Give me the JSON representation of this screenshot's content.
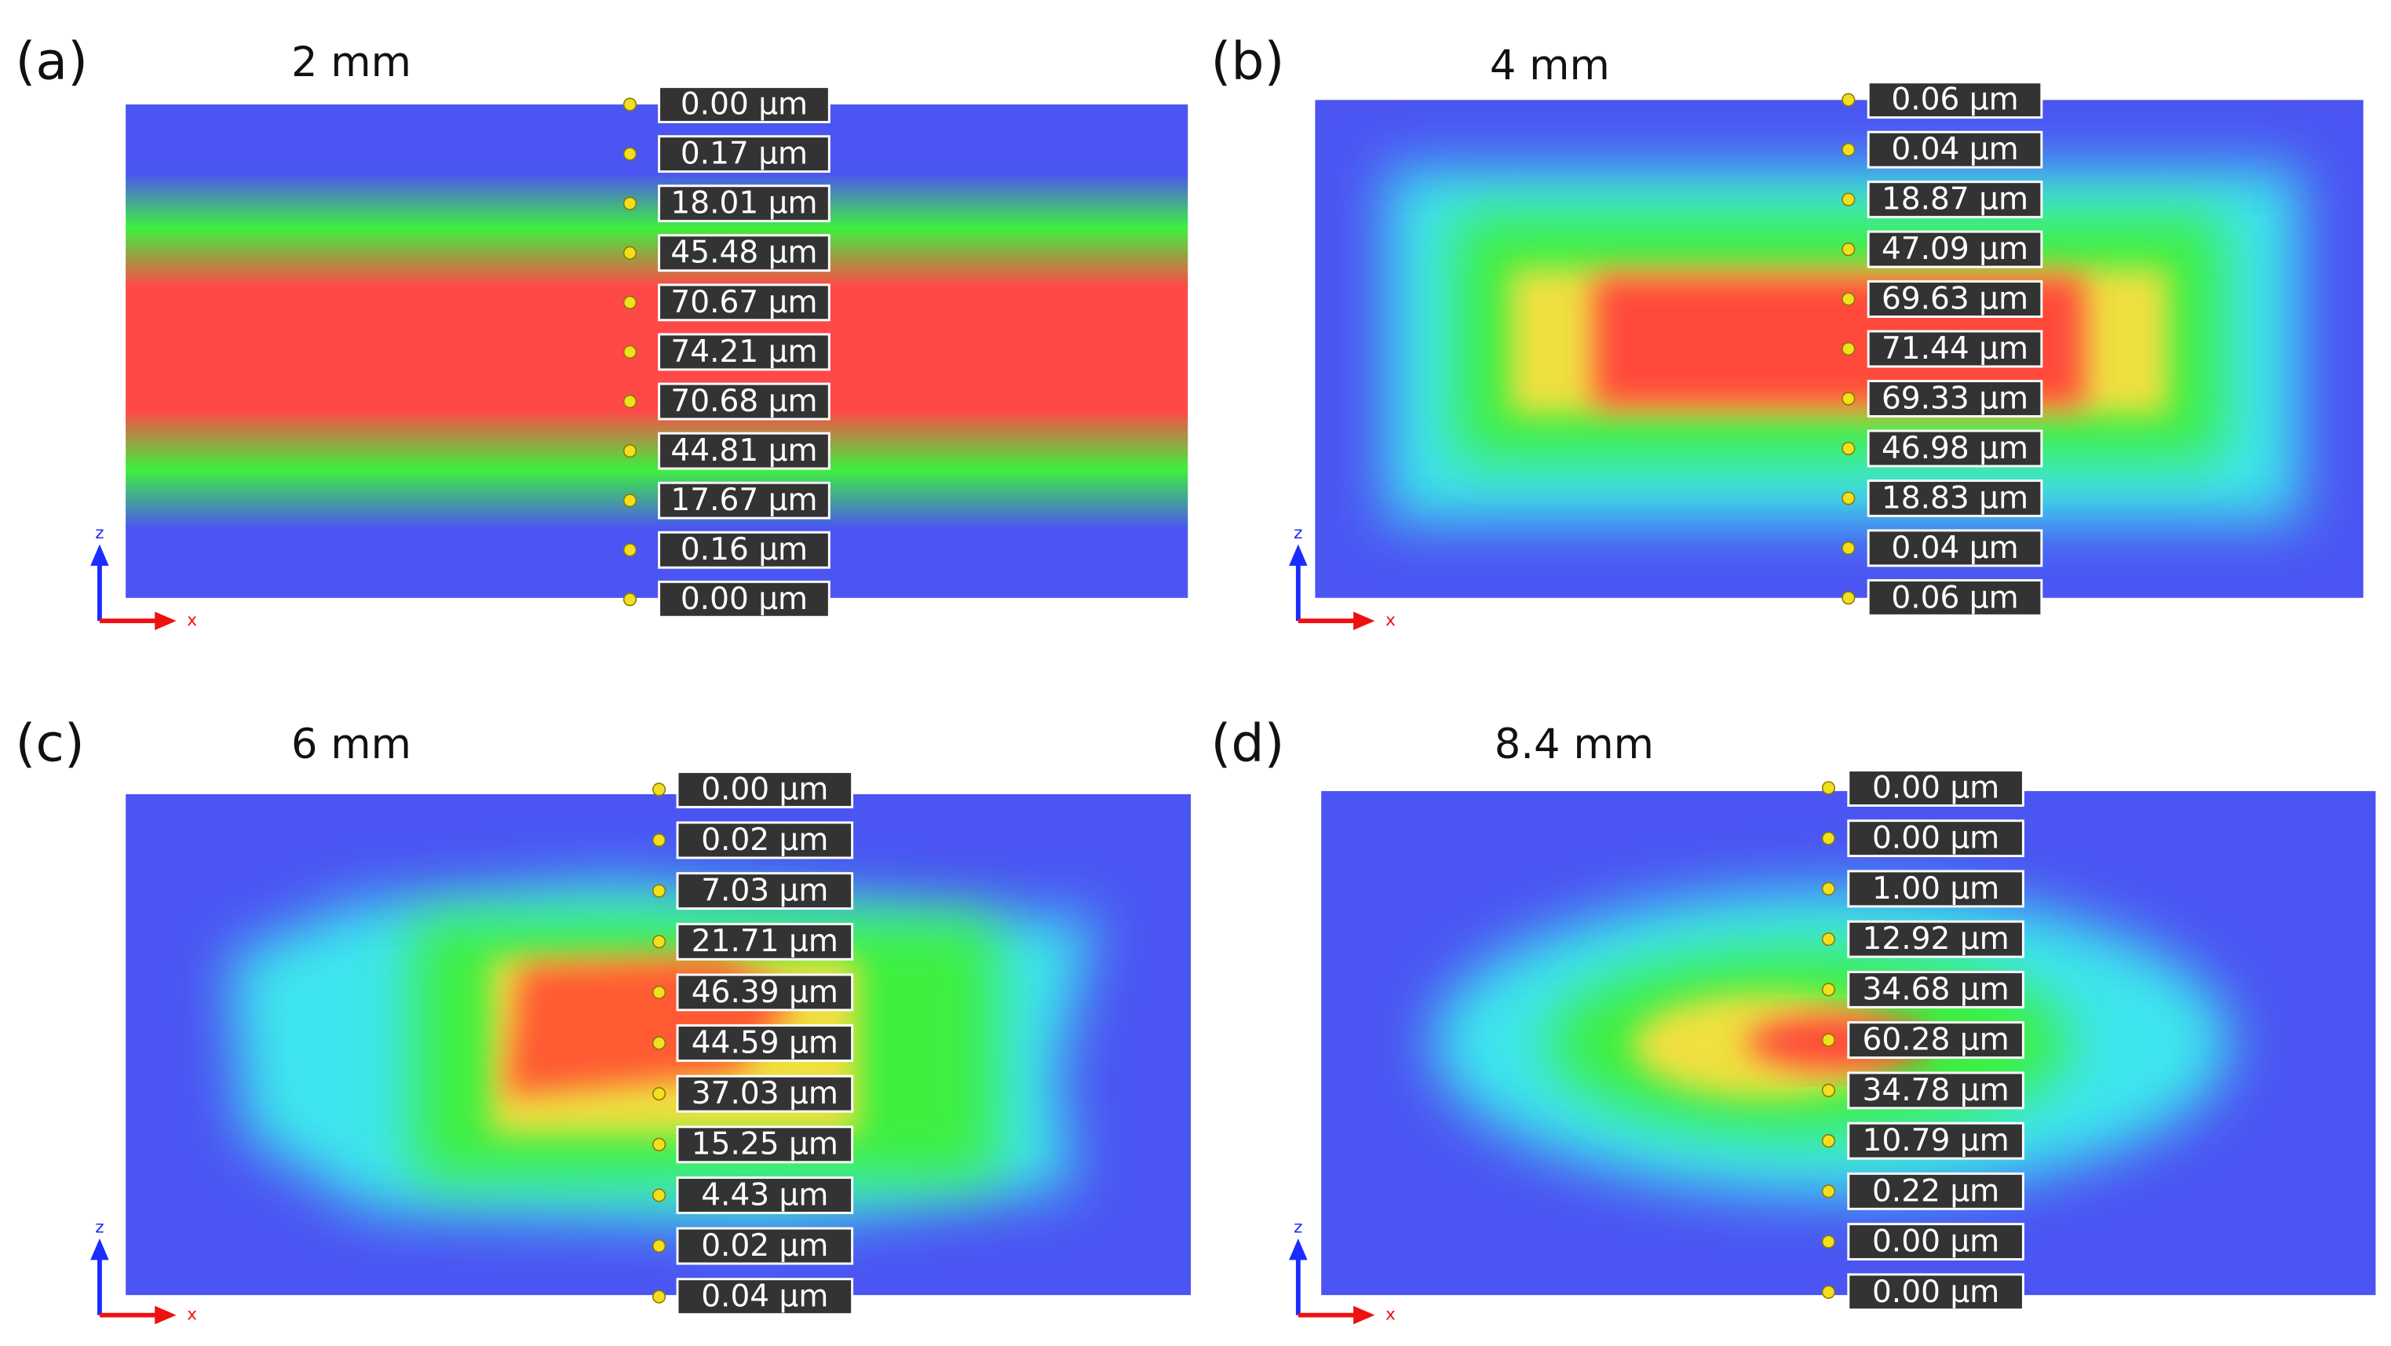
{
  "panels": [
    {
      "label": "(a)",
      "title": "2 mm",
      "axis_labels": {
        "vertical": "z",
        "horizontal": "x"
      },
      "readings": [
        "0.00 µm",
        "0.17 µm",
        "18.01 µm",
        "45.48 µm",
        "70.67 µm",
        "74.21 µm",
        "70.68 µm",
        "44.81 µm",
        "17.67 µm",
        "0.16 µm",
        "0.00 µm"
      ]
    },
    {
      "label": "(b)",
      "title": "4 mm",
      "axis_labels": {
        "vertical": "z",
        "horizontal": "x"
      },
      "readings": [
        "0.06 µm",
        "0.04 µm",
        "18.87 µm",
        "47.09 µm",
        "69.63 µm",
        "71.44 µm",
        "69.33 µm",
        "46.98 µm",
        "18.83 µm",
        "0.04 µm",
        "0.06 µm"
      ]
    },
    {
      "label": "(c)",
      "title": "6 mm",
      "axis_labels": {
        "vertical": "z",
        "horizontal": "x"
      },
      "readings": [
        "0.00 µm",
        "0.02 µm",
        "7.03 µm",
        "21.71 µm",
        "46.39 µm",
        "44.59 µm",
        "37.03 µm",
        "15.25 µm",
        "4.43 µm",
        "0.02 µm",
        "0.04 µm"
      ]
    },
    {
      "label": "(d)",
      "title": "8.4 mm",
      "axis_labels": {
        "vertical": "z",
        "horizontal": "x"
      },
      "readings": [
        "0.00 µm",
        "0.00 µm",
        "1.00 µm",
        "12.92 µm",
        "34.68 µm",
        "60.28 µm",
        "34.78 µm",
        "10.79 µm",
        "0.22 µm",
        "0.00 µm",
        "0.00 µm"
      ]
    }
  ]
}
